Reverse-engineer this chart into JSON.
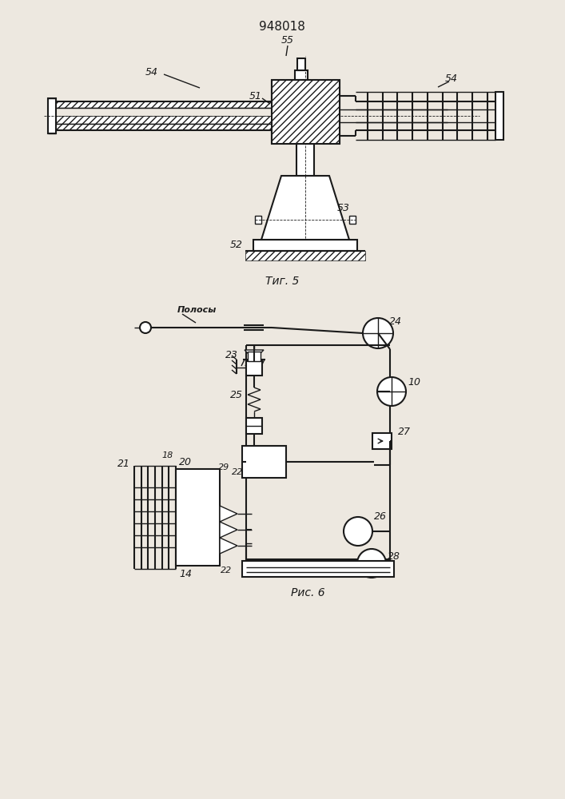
{
  "title": "948018",
  "fig1_caption": "Τиг. 5",
  "fig2_caption": "Рис. 6",
  "bg_color": "#ede8e0",
  "line_color": "#1a1a1a",
  "font_size_title": 11,
  "font_size_labels": 9,
  "font_size_caption": 10
}
